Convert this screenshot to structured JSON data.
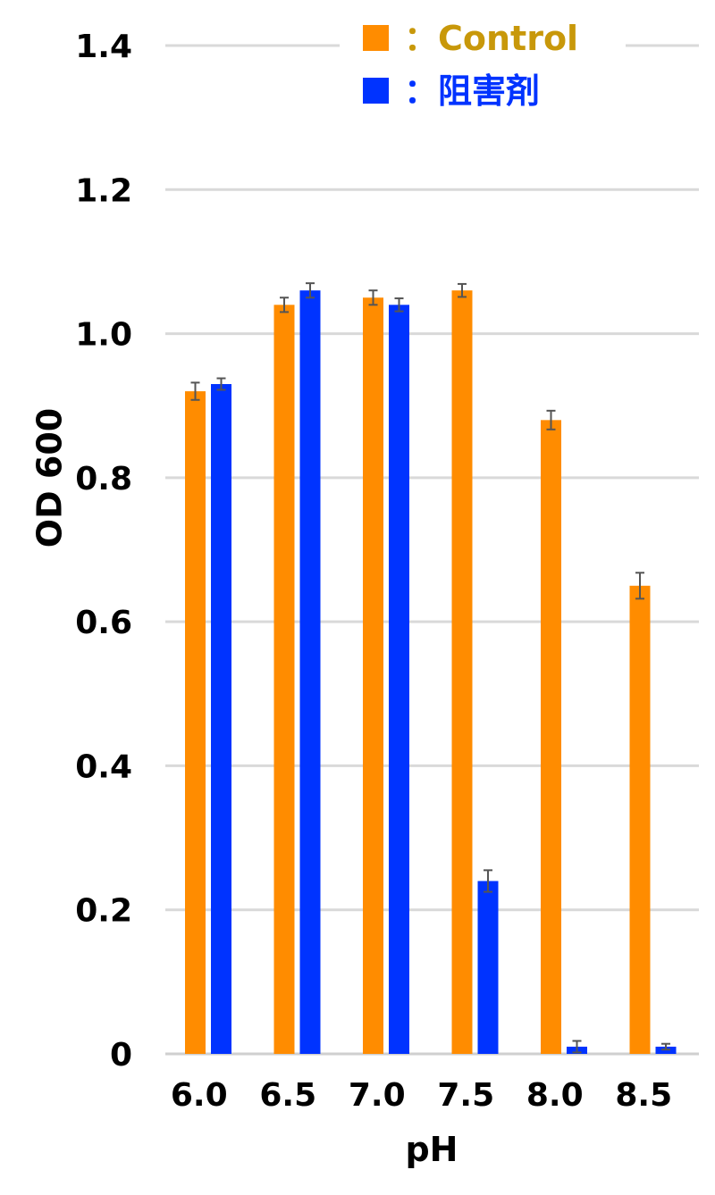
{
  "chart_data": {
    "type": "bar",
    "title": "",
    "xlabel": "pH",
    "ylabel": "OD 600",
    "ylim": [
      0,
      1.4
    ],
    "yticks": [
      0,
      0.2,
      0.4,
      0.6,
      0.8,
      1.0,
      1.2,
      1.4
    ],
    "ytick_labels": [
      "0",
      "0.2",
      "0.4",
      "0.6",
      "0.8",
      "1.0",
      "1.2",
      "1.4"
    ],
    "categories": [
      "6.0",
      "6.5",
      "7.0",
      "7.5",
      "8.0",
      "8.5"
    ],
    "grid": true,
    "legend_position": "top-right",
    "series": [
      {
        "name": "Control",
        "legend_label": "：Control",
        "color": "#FF8C00",
        "legend_text_color": "#C8980A",
        "values": [
          0.92,
          1.04,
          1.05,
          1.06,
          0.88,
          0.65
        ],
        "errors": [
          0.012,
          0.01,
          0.01,
          0.009,
          0.013,
          0.018
        ]
      },
      {
        "name": "阻害剤",
        "legend_label": "：阻害剤",
        "color": "#0033FF",
        "legend_text_color": "#0033FF",
        "values": [
          0.93,
          1.06,
          1.04,
          0.24,
          0.01,
          0.01
        ],
        "errors": [
          0.008,
          0.01,
          0.009,
          0.015,
          0.008,
          0.004
        ]
      }
    ]
  }
}
